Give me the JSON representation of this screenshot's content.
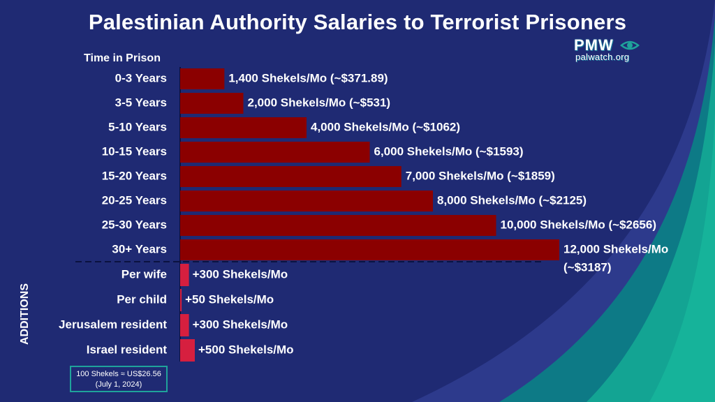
{
  "title": "Palestinian Authority Salaries to Terrorist Prisoners",
  "logo": {
    "text": "PMW",
    "subtext": "palwatch.org",
    "icon": "eye-icon"
  },
  "note": {
    "line1": "100 Shekels ≈ US$26.56",
    "line2": "(July 1, 2024)"
  },
  "colors": {
    "background": "#1f2a73",
    "bar": "#8b0000",
    "addition_bar": "#d61f3f",
    "teal": "#12a896"
  },
  "chart_data": [
    {
      "type": "bar",
      "orientation": "horizontal",
      "section_label": "Time in Prison",
      "categories": [
        "0-3 Years",
        "3-5 Years",
        "5-10 Years",
        "10-15 Years",
        "15-20 Years",
        "20-25 Years",
        "25-30 Years",
        "30+ Years"
      ],
      "values": [
        1400,
        2000,
        4000,
        6000,
        7000,
        8000,
        10000,
        12000
      ],
      "data_labels": [
        "1,400 Shekels/Mo (~$371.89)",
        "2,000 Shekels/Mo (~$531)",
        "4,000 Shekels/Mo (~$1062)",
        "6,000 Shekels/Mo (~$1593)",
        "7,000 Shekels/Mo (~$1859)",
        "8,000 Shekels/Mo (~$2125)",
        "10,000 Shekels/Mo (~$2656)",
        "12,000 Shekels/Mo (~$3187)"
      ]
    },
    {
      "type": "bar",
      "orientation": "horizontal",
      "section_label": "ADDITIONS",
      "categories": [
        "Per wife",
        "Per child",
        "Jerusalem resident",
        "Israel resident"
      ],
      "values": [
        300,
        50,
        300,
        500
      ],
      "data_labels": [
        "+300 Shekels/Mo",
        "+50 Shekels/Mo",
        "+300 Shekels/Mo",
        "+500 Shekels/Mo"
      ]
    }
  ]
}
